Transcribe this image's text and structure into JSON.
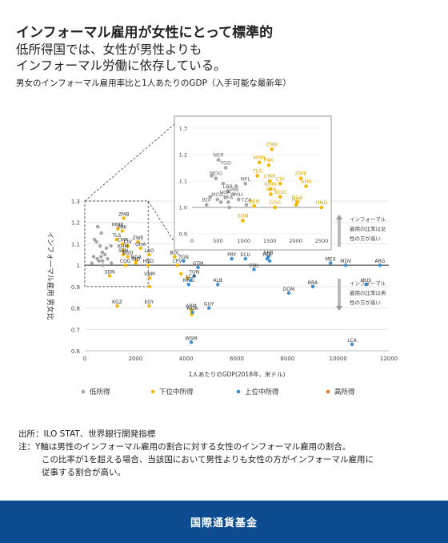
{
  "header": {
    "title": "インフォーマル雇用が女性にとって標準的",
    "subtitle_line1": "低所得国では、女性が男性よりも",
    "subtitle_line2": "インフォーマル労働に依存している。",
    "note": "男女のインフォーマル雇用率比と1人あたりのGDP（入手可能な最新年）"
  },
  "chart_data": {
    "type": "scatter",
    "xlabel": "1人あたりのGDP(2018年、米ドル)",
    "ylabel": "インフォーマル雇用 男女比",
    "xlim": [
      0,
      12000
    ],
    "ylim": [
      0.6,
      1.3
    ],
    "xticks": [
      "0",
      "2000",
      "4000",
      "6000",
      "8000",
      "10000",
      "12000"
    ],
    "yticks": [
      "0.6",
      "0.7",
      "0.8",
      "0.9",
      "1",
      "1.1",
      "1.2",
      "1.3"
    ],
    "reference_y": 1.0,
    "legend": [
      "低所得",
      "下位中所得",
      "上位中所得",
      "高所得"
    ],
    "colors": [
      "#a6a6a6",
      "#f5b700",
      "#3a8fd1",
      "#e8762c"
    ],
    "arrow_up_text": [
      "インフォーマル",
      "雇用の比率は女",
      "性の方が高い"
    ],
    "arrow_down_text": [
      "インフォーマル",
      "雇用の比率は男",
      "性の方が高い"
    ],
    "series": [
      {
        "name": "低所得",
        "points": [
          {
            "label": "MDG",
            "x": 460,
            "y": 1.11
          },
          {
            "label": "BDI",
            "x": 280,
            "y": 1.01
          },
          {
            "label": "NER",
            "x": 510,
            "y": 1.18
          },
          {
            "label": "TGO",
            "x": 650,
            "y": 1.15
          },
          {
            "label": "NPL",
            "x": 1030,
            "y": 1.09
          },
          {
            "label": "LBR",
            "x": 690,
            "y": 1.06
          },
          {
            "label": "GNB",
            "x": 790,
            "y": 1.05
          },
          {
            "label": "MOZ",
            "x": 490,
            "y": 1.03
          },
          {
            "label": "MLI",
            "x": 900,
            "y": 1.03
          },
          {
            "label": "BFA",
            "x": 700,
            "y": 1.02
          },
          {
            "label": "UGA",
            "x": 640,
            "y": 1.04
          },
          {
            "label": "TZA",
            "x": 1050,
            "y": 1.01
          },
          {
            "label": "",
            "x": 380,
            "y": 1.12
          },
          {
            "label": "",
            "x": 600,
            "y": 1.09
          },
          {
            "label": "",
            "x": 850,
            "y": 1.08
          },
          {
            "label": "",
            "x": 720,
            "y": 1.0
          },
          {
            "label": "",
            "x": 560,
            "y": 1.02
          },
          {
            "label": "",
            "x": 350,
            "y": 1.04
          }
        ]
      },
      {
        "name": "下位中所得",
        "points": [
          {
            "label": "ZMB",
            "x": 1540,
            "y": 1.22
          },
          {
            "label": "MMR",
            "x": 1300,
            "y": 1.17
          },
          {
            "label": "PAK",
            "x": 1480,
            "y": 1.16
          },
          {
            "label": "TLS",
            "x": 1260,
            "y": 1.12
          },
          {
            "label": "CMR",
            "x": 1500,
            "y": 1.1
          },
          {
            "label": "CIV",
            "x": 1700,
            "y": 1.09
          },
          {
            "label": "ZWE",
            "x": 2100,
            "y": 1.11
          },
          {
            "label": "GHA",
            "x": 2200,
            "y": 1.08
          },
          {
            "label": "KHM",
            "x": 1510,
            "y": 1.07
          },
          {
            "label": "SEN",
            "x": 1520,
            "y": 1.05
          },
          {
            "label": "BGD",
            "x": 1700,
            "y": 1.04
          },
          {
            "label": "NGA",
            "x": 2030,
            "y": 1.02
          },
          {
            "label": "IND",
            "x": 2010,
            "y": 1.01
          },
          {
            "label": "COG",
            "x": 1600,
            "y": 1.0
          },
          {
            "label": "LAO",
            "x": 2540,
            "y": 1.05
          },
          {
            "label": "HND",
            "x": 2500,
            "y": 1.0
          },
          {
            "label": "SDN",
            "x": 980,
            "y": 0.95
          },
          {
            "label": "VNM",
            "x": 2560,
            "y": 0.94
          },
          {
            "label": "EGY",
            "x": 2540,
            "y": 0.81
          },
          {
            "label": "KGZ",
            "x": 1280,
            "y": 0.81
          },
          {
            "label": "BOL",
            "x": 3550,
            "y": 1.04
          },
          {
            "label": "CPV",
            "x": 3650,
            "y": 1.0
          },
          {
            "label": "ARM",
            "x": 4200,
            "y": 0.79
          },
          {
            "label": "",
            "x": 3800,
            "y": 0.96
          },
          {
            "label": "",
            "x": 4050,
            "y": 0.94
          },
          {
            "label": "",
            "x": 4220,
            "y": 0.77
          },
          {
            "label": "",
            "x": 2550,
            "y": 0.9
          }
        ]
      },
      {
        "name": "上位中所得",
        "points": [
          {
            "label": "TGN",
            "x": 3900,
            "y": 1.02
          },
          {
            "label": "GTM",
            "x": 4470,
            "y": 0.99
          },
          {
            "label": "TON",
            "x": 4320,
            "y": 0.95
          },
          {
            "label": "MNG",
            "x": 4100,
            "y": 0.91
          },
          {
            "label": "LCA",
            "x": 4180,
            "y": 0.93
          },
          {
            "label": "ALB",
            "x": 5250,
            "y": 0.91
          },
          {
            "label": "GUY",
            "x": 4900,
            "y": 0.8
          },
          {
            "label": "MDA",
            "x": 4250,
            "y": 0.78
          },
          {
            "label": "WSM",
            "x": 4200,
            "y": 0.64
          },
          {
            "label": "PRY",
            "x": 5800,
            "y": 1.03
          },
          {
            "label": "ECU",
            "x": 6340,
            "y": 1.03
          },
          {
            "label": "COL",
            "x": 6680,
            "y": 0.98
          },
          {
            "label": "SRB",
            "x": 7250,
            "y": 1.04
          },
          {
            "label": "PER",
            "x": 7200,
            "y": 1.03
          },
          {
            "label": "DOM",
            "x": 8050,
            "y": 0.87
          },
          {
            "label": "BRA",
            "x": 9000,
            "y": 0.9
          },
          {
            "label": "MEX",
            "x": 9700,
            "y": 1.01
          },
          {
            "label": "MDV",
            "x": 10300,
            "y": 1.0
          },
          {
            "label": "ARG",
            "x": 11650,
            "y": 1.0
          },
          {
            "label": "MUS",
            "x": 11100,
            "y": 0.91
          },
          {
            "label": "LCA",
            "x": 10550,
            "y": 0.63
          },
          {
            "label": "",
            "x": 7300,
            "y": 1.02
          }
        ]
      },
      {
        "name": "高所得",
        "points": []
      }
    ],
    "inset": {
      "xlim": [
        0,
        2500
      ],
      "ylim": [
        0.9,
        1.3
      ],
      "xticks": [
        "0",
        "500",
        "1000",
        "1500",
        "2000",
        "2500"
      ],
      "yticks": [
        "0.9",
        "1.0",
        "1.1",
        "1.2",
        "1.3"
      ],
      "labeled": {
        "grey": [
          "NER",
          "TGO",
          "NPL",
          "LBR",
          "GNB",
          "MOZ",
          "MLI",
          "BFA",
          "UGA",
          "TZA",
          "MDG",
          "BDI"
        ],
        "yellow": [
          "ZMB",
          "MMR",
          "PAK",
          "TLS",
          "CMR",
          "CIV",
          "ZWE",
          "GHA",
          "KHM",
          "SEN",
          "BGD",
          "NGA",
          "IND",
          "COG"
        ],
        "blue": [
          "BEN"
        ]
      }
    }
  },
  "sources": {
    "line1": "出所：ILO STAT、世界銀行開発指標",
    "line2": "注：Y軸は男性のインフォーマル雇用の割合に対する女性のインフォーマル雇用の割合。",
    "line3": "この比率が1を超える場合、当該国において男性よりも女性の方がインフォーマル雇用に",
    "line4": "従事する割合が高い。"
  },
  "footer": {
    "label": "国際通貨基金"
  }
}
